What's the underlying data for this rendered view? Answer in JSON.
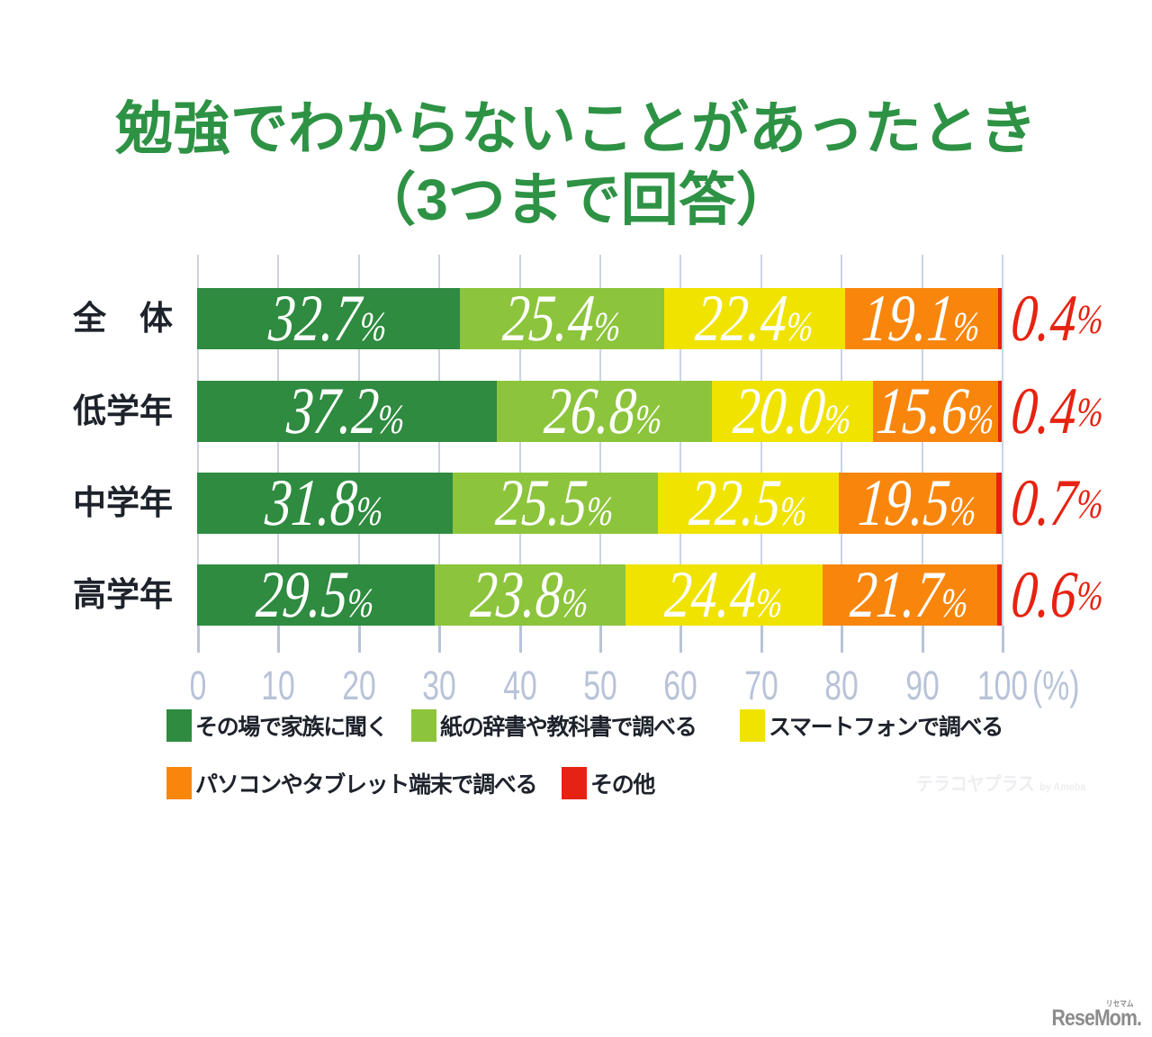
{
  "title": {
    "line1": "勉強でわからないことがあったとき",
    "line2": "（3つまで回答）"
  },
  "chart_data": {
    "type": "bar",
    "orientation": "horizontal",
    "stacked": true,
    "categories": [
      "全　体",
      "低学年",
      "中学年",
      "高学年"
    ],
    "series": [
      {
        "name": "その場で家族に聞く",
        "color": "#2e8b3f",
        "values": [
          32.7,
          37.2,
          31.8,
          29.5
        ]
      },
      {
        "name": "紙の辞書や教科書で調べる",
        "color": "#8cc43c",
        "values": [
          25.4,
          26.8,
          25.5,
          23.8
        ]
      },
      {
        "name": "スマートフォンで調べる",
        "color": "#f0e300",
        "values": [
          22.4,
          20.0,
          22.5,
          24.4
        ]
      },
      {
        "name": "パソコンやタブレット端末で調べる",
        "color": "#f8860d",
        "values": [
          19.1,
          15.6,
          19.5,
          21.7
        ]
      },
      {
        "name": "その他",
        "color": "#e62312",
        "values": [
          0.4,
          0.4,
          0.7,
          0.6
        ]
      }
    ],
    "xlim": [
      0,
      100
    ],
    "x_ticks": [
      "0",
      "10",
      "20",
      "30",
      "40",
      "50",
      "60",
      "70",
      "80",
      "90",
      "100"
    ],
    "x_axis_suffix": "(%)",
    "value_suffix": "%",
    "outside_label_series": "その他",
    "legend_position": "bottom"
  },
  "watermark": {
    "main": "テラコヤプラス",
    "by": "by Ameba"
  },
  "logo": {
    "text": "ReseMom.",
    "ruby": "リセマム"
  }
}
